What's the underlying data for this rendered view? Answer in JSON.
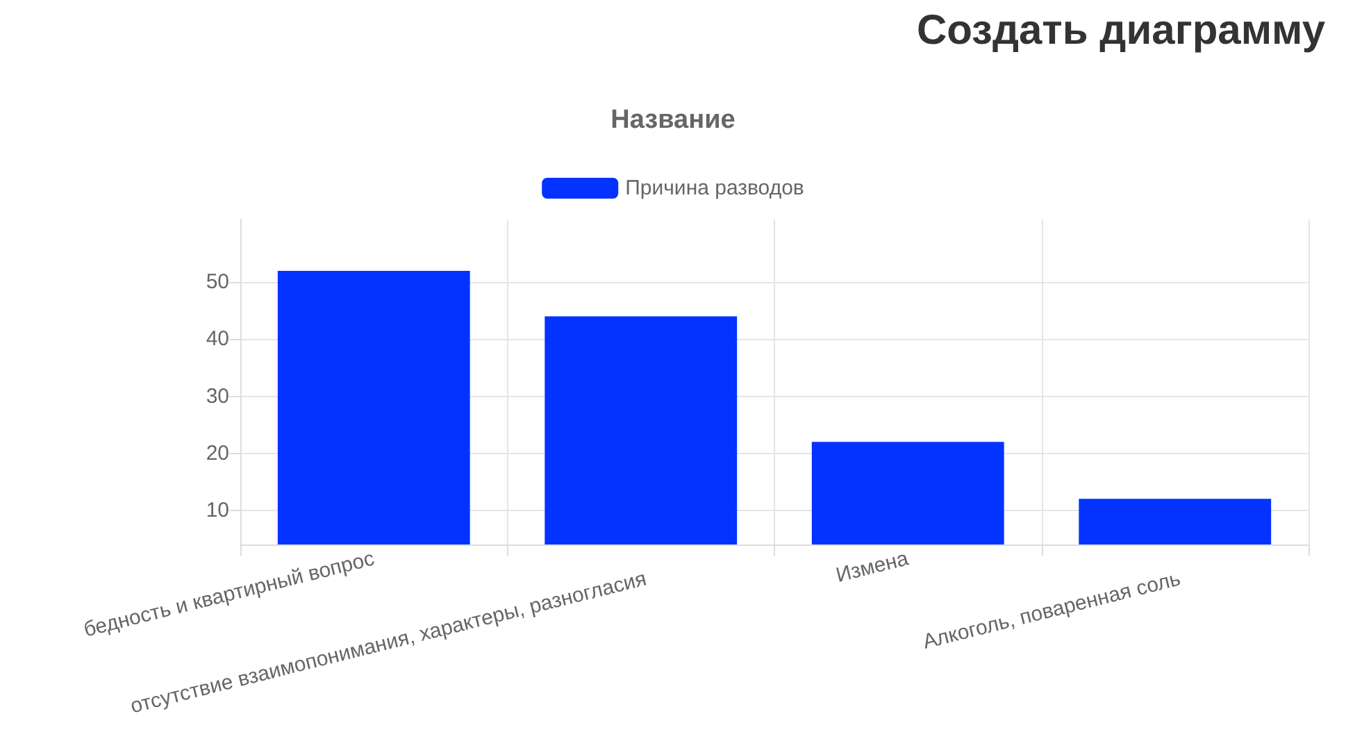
{
  "chart_data": {
    "type": "bar",
    "title": "Название",
    "annotations": [
      "Создать диаграмму"
    ],
    "categories": [
      "бедность и квартирный вопрос",
      "отсутствие взаимопонимания, характеры, разногласия",
      "Измена",
      "Алкоголь, поваренная соль"
    ],
    "series": [
      {
        "name": "Причина разводов",
        "color": "#0433ff",
        "values": [
          52,
          44,
          22,
          12
        ]
      }
    ],
    "ylim": [
      4,
      61
    ],
    "yticks": [
      10,
      20,
      30,
      40,
      50
    ],
    "grid": true,
    "legend": "top"
  }
}
